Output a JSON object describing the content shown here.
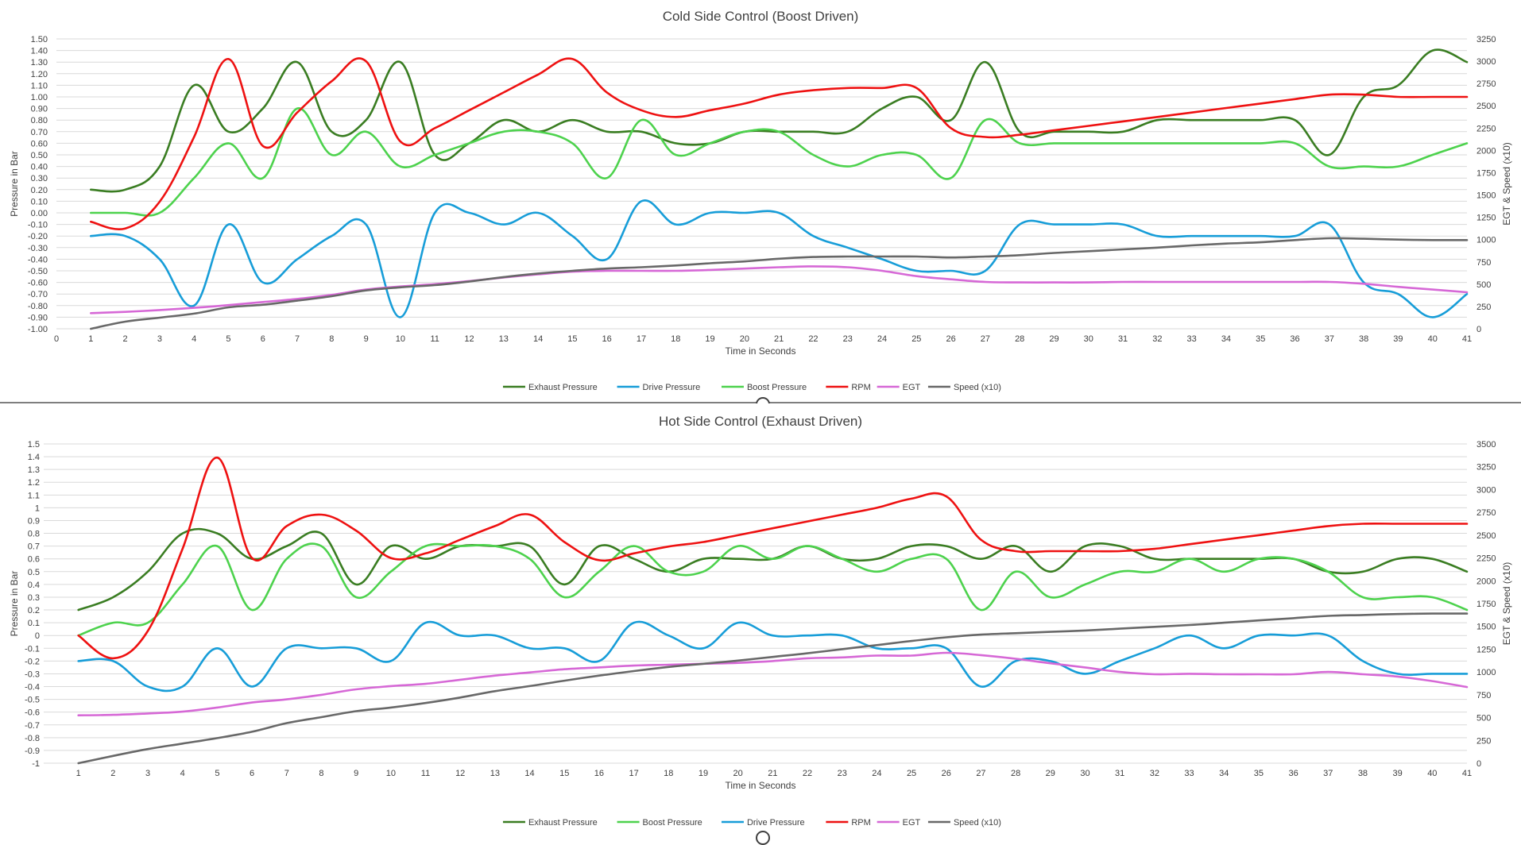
{
  "chart_data": [
    {
      "type": "line",
      "title": "Cold Side Control (Boost Driven)",
      "xlabel": "Time in Seconds",
      "ylabel": "Pressure in Bar",
      "y2label": "EGT & Speed (x10)",
      "xlim": [
        0,
        41
      ],
      "ylim": [
        -1.0,
        1.5
      ],
      "y2lim": [
        0,
        3250
      ],
      "x_ticks": [
        0,
        1,
        2,
        3,
        4,
        5,
        6,
        7,
        8,
        9,
        10,
        11,
        12,
        13,
        14,
        15,
        16,
        17,
        18,
        19,
        20,
        21,
        22,
        23,
        24,
        25,
        26,
        27,
        28,
        29,
        30,
        31,
        32,
        33,
        34,
        35,
        36,
        37,
        38,
        39,
        40,
        41
      ],
      "y_ticks": [
        "-1.00",
        "-0.90",
        "-0.80",
        "-0.70",
        "-0.60",
        "-0.50",
        "-0.40",
        "-0.30",
        "-0.20",
        "-0.10",
        "0.00",
        "0.10",
        "0.20",
        "0.30",
        "0.40",
        "0.50",
        "0.60",
        "0.70",
        "0.80",
        "0.90",
        "1.00",
        "1.10",
        "1.20",
        "1.30",
        "1.40",
        "1.50"
      ],
      "y2_ticks": [
        "0",
        "250",
        "500",
        "750",
        "1000",
        "1250",
        "1500",
        "1750",
        "2000",
        "2250",
        "2500",
        "2750",
        "3000",
        "3250"
      ],
      "legend_position": "bottom",
      "grid": true,
      "x": [
        1,
        2,
        3,
        4,
        5,
        6,
        7,
        8,
        9,
        10,
        11,
        12,
        13,
        14,
        15,
        16,
        17,
        18,
        19,
        20,
        21,
        22,
        23,
        24,
        25,
        26,
        27,
        28,
        29,
        30,
        31,
        32,
        33,
        34,
        35,
        36,
        37,
        38,
        39,
        40,
        41
      ],
      "series": [
        {
          "name": "Exhaust Pressure",
          "color": "#3a7d22",
          "axis": "left",
          "values": [
            0.2,
            0.2,
            0.4,
            1.1,
            0.7,
            0.9,
            1.3,
            0.7,
            0.8,
            1.3,
            0.5,
            0.6,
            0.8,
            0.7,
            0.8,
            0.7,
            0.7,
            0.6,
            0.6,
            0.7,
            0.7,
            0.7,
            0.7,
            0.9,
            1.0,
            0.8,
            1.3,
            0.7,
            0.7,
            0.7,
            0.7,
            0.8,
            0.8,
            0.8,
            0.8,
            0.8,
            0.5,
            1.0,
            1.1,
            1.4,
            1.3
          ]
        },
        {
          "name": "Drive Pressure",
          "color": "#179dd8",
          "axis": "left",
          "values": [
            -0.2,
            -0.2,
            -0.4,
            -0.8,
            -0.1,
            -0.6,
            -0.4,
            -0.2,
            -0.1,
            -0.9,
            0.0,
            0.0,
            -0.1,
            0.0,
            -0.2,
            -0.4,
            0.1,
            -0.1,
            0.0,
            0.0,
            0.0,
            -0.2,
            -0.3,
            -0.4,
            -0.5,
            -0.5,
            -0.5,
            -0.1,
            -0.1,
            -0.1,
            -0.1,
            -0.2,
            -0.2,
            -0.2,
            -0.2,
            -0.2,
            -0.1,
            -0.6,
            -0.7,
            -0.9,
            -0.7
          ]
        },
        {
          "name": "Boost Pressure",
          "color": "#4dd24d",
          "axis": "left",
          "values": [
            0.0,
            0.0,
            0.0,
            0.3,
            0.6,
            0.3,
            0.9,
            0.5,
            0.7,
            0.4,
            0.5,
            0.6,
            0.7,
            0.7,
            0.6,
            0.3,
            0.8,
            0.5,
            0.6,
            0.7,
            0.7,
            0.5,
            0.4,
            0.5,
            0.5,
            0.3,
            0.8,
            0.6,
            0.6,
            0.6,
            0.6,
            0.6,
            0.6,
            0.6,
            0.6,
            0.6,
            0.4,
            0.4,
            0.4,
            0.5,
            0.6
          ]
        },
        {
          "name": "RPM",
          "color": "#ee1111",
          "axis": "right",
          "values": [
            1200,
            1125,
            1425,
            2150,
            3025,
            2050,
            2425,
            2775,
            3000,
            2100,
            2250,
            2450,
            2650,
            2850,
            3025,
            2650,
            2450,
            2375,
            2450,
            2525,
            2625,
            2675,
            2700,
            2700,
            2700,
            2250,
            2150,
            2175,
            2225,
            2275,
            2325,
            2375,
            2425,
            2475,
            2525,
            2575,
            2625,
            2625,
            2600,
            2600,
            2600
          ]
        },
        {
          "name": "EGT",
          "color": "#d668d6",
          "axis": "right",
          "values": [
            175,
            190,
            210,
            235,
            265,
            300,
            335,
            380,
            440,
            475,
            500,
            535,
            575,
            610,
            640,
            650,
            650,
            650,
            660,
            675,
            690,
            700,
            690,
            650,
            590,
            555,
            525,
            520,
            520,
            520,
            525,
            525,
            525,
            525,
            525,
            525,
            525,
            505,
            470,
            440,
            410
          ]
        },
        {
          "name": "Speed (x10)",
          "color": "#686868",
          "axis": "right",
          "values": [
            0,
            80,
            125,
            170,
            240,
            270,
            315,
            365,
            430,
            465,
            490,
            530,
            580,
            620,
            650,
            675,
            690,
            710,
            735,
            755,
            785,
            805,
            810,
            810,
            810,
            800,
            810,
            825,
            850,
            870,
            890,
            910,
            935,
            955,
            970,
            995,
            1015,
            1010,
            1000,
            995,
            995
          ]
        }
      ]
    },
    {
      "type": "line",
      "title": "Hot Side Control (Exhaust Driven)",
      "xlabel": "Time in Seconds",
      "ylabel": "Pressure in Bar",
      "y2label": "EGT & Speed (x10)",
      "xlim": [
        0,
        41
      ],
      "ylim": [
        -1,
        1.5
      ],
      "y2lim": [
        0,
        3500
      ],
      "x_ticks": [
        1,
        2,
        3,
        4,
        5,
        6,
        7,
        8,
        9,
        10,
        11,
        12,
        13,
        14,
        15,
        16,
        17,
        18,
        19,
        20,
        21,
        22,
        23,
        24,
        25,
        26,
        27,
        28,
        29,
        30,
        31,
        32,
        33,
        34,
        35,
        36,
        37,
        38,
        39,
        40,
        41
      ],
      "y_ticks": [
        "-1",
        "-0.9",
        "-0.8",
        "-0.7",
        "-0.6",
        "-0.5",
        "-0.4",
        "-0.3",
        "-0.2",
        "-0.1",
        "0",
        "0.1",
        "0.2",
        "0.3",
        "0.4",
        "0.5",
        "0.6",
        "0.7",
        "0.8",
        "0.9",
        "1",
        "1.1",
        "1.2",
        "1.3",
        "1.4",
        "1.5"
      ],
      "y2_ticks": [
        "0",
        "250",
        "500",
        "750",
        "1000",
        "1250",
        "1500",
        "1750",
        "2000",
        "2250",
        "2500",
        "2750",
        "3000",
        "3250",
        "3500"
      ],
      "legend_position": "bottom",
      "grid": true,
      "x": [
        1,
        2,
        3,
        4,
        5,
        6,
        7,
        8,
        9,
        10,
        11,
        12,
        13,
        14,
        15,
        16,
        17,
        18,
        19,
        20,
        21,
        22,
        23,
        24,
        25,
        26,
        27,
        28,
        29,
        30,
        31,
        32,
        33,
        34,
        35,
        36,
        37,
        38,
        39,
        40,
        41
      ],
      "series": [
        {
          "name": "Exhaust Pressure",
          "color": "#3a7d22",
          "axis": "left",
          "values": [
            0.2,
            0.3,
            0.5,
            0.8,
            0.8,
            0.6,
            0.7,
            0.8,
            0.4,
            0.7,
            0.6,
            0.7,
            0.7,
            0.7,
            0.4,
            0.7,
            0.6,
            0.5,
            0.6,
            0.6,
            0.6,
            0.7,
            0.6,
            0.6,
            0.7,
            0.7,
            0.6,
            0.7,
            0.5,
            0.7,
            0.7,
            0.6,
            0.6,
            0.6,
            0.6,
            0.6,
            0.5,
            0.5,
            0.6,
            0.6,
            0.5
          ]
        },
        {
          "name": "Boost Pressure",
          "color": "#4dd24d",
          "axis": "left",
          "values": [
            0.0,
            0.1,
            0.1,
            0.4,
            0.7,
            0.2,
            0.6,
            0.7,
            0.3,
            0.5,
            0.7,
            0.7,
            0.7,
            0.6,
            0.3,
            0.5,
            0.7,
            0.5,
            0.5,
            0.7,
            0.6,
            0.7,
            0.6,
            0.5,
            0.6,
            0.6,
            0.2,
            0.5,
            0.3,
            0.4,
            0.5,
            0.5,
            0.6,
            0.5,
            0.6,
            0.6,
            0.5,
            0.3,
            0.3,
            0.3,
            0.2
          ]
        },
        {
          "name": "Drive Pressure",
          "color": "#179dd8",
          "axis": "left",
          "values": [
            -0.2,
            -0.2,
            -0.4,
            -0.4,
            -0.1,
            -0.4,
            -0.1,
            -0.1,
            -0.1,
            -0.2,
            0.1,
            0.0,
            0.0,
            -0.1,
            -0.1,
            -0.2,
            0.1,
            0.0,
            -0.1,
            0.1,
            0.0,
            0.0,
            0.0,
            -0.1,
            -0.1,
            -0.1,
            -0.4,
            -0.2,
            -0.2,
            -0.3,
            -0.2,
            -0.1,
            0.0,
            -0.1,
            0.0,
            0.0,
            0.0,
            -0.2,
            -0.3,
            -0.3,
            -0.3
          ]
        },
        {
          "name": "RPM",
          "color": "#ee1111",
          "axis": "right",
          "values": [
            1400,
            1150,
            1450,
            2350,
            3350,
            2250,
            2600,
            2725,
            2550,
            2250,
            2300,
            2450,
            2600,
            2725,
            2425,
            2225,
            2300,
            2375,
            2425,
            2500,
            2575,
            2650,
            2725,
            2800,
            2900,
            2925,
            2450,
            2325,
            2325,
            2325,
            2325,
            2350,
            2400,
            2450,
            2500,
            2550,
            2600,
            2625,
            2625,
            2625,
            2625
          ]
        },
        {
          "name": "EGT",
          "color": "#d668d6",
          "axis": "right",
          "values": [
            525,
            530,
            545,
            565,
            610,
            665,
            700,
            750,
            810,
            845,
            870,
            915,
            960,
            995,
            1030,
            1050,
            1070,
            1080,
            1090,
            1100,
            1120,
            1150,
            1160,
            1180,
            1180,
            1210,
            1185,
            1145,
            1095,
            1050,
            1000,
            975,
            980,
            975,
            975,
            975,
            1000,
            975,
            950,
            900,
            835
          ]
        },
        {
          "name": "Speed (x10)",
          "color": "#686868",
          "axis": "right",
          "values": [
            0,
            80,
            155,
            215,
            275,
            345,
            440,
            505,
            570,
            610,
            660,
            720,
            790,
            845,
            905,
            960,
            1010,
            1055,
            1090,
            1125,
            1165,
            1205,
            1250,
            1295,
            1340,
            1380,
            1410,
            1425,
            1440,
            1455,
            1475,
            1495,
            1515,
            1540,
            1565,
            1590,
            1615,
            1625,
            1635,
            1640,
            1640
          ]
        }
      ]
    }
  ]
}
